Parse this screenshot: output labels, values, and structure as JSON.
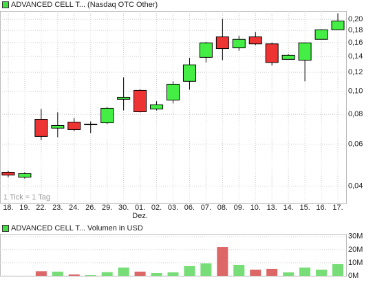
{
  "chart_data": [
    {
      "type": "candlestick",
      "title": "ADVANCED CELL T... (Nasdaq OTC Other)",
      "legend_color": "#44dd44",
      "annotation": "1 Tick = 1 Tag",
      "categories": [
        "18.",
        "19.",
        "22.",
        "23.",
        "24.",
        "26.",
        "29.",
        "30.",
        "01.",
        "02.",
        "03.",
        "06.",
        "07.",
        "08.",
        "09.",
        "10.",
        "13.",
        "14.",
        "15.",
        "16.",
        "17."
      ],
      "month_marks": [
        {
          "category": 8,
          "label": "Dez."
        }
      ],
      "open": [
        0.0457,
        0.0436,
        0.0762,
        0.07,
        0.0742,
        0.0728,
        0.0737,
        0.0925,
        0.1008,
        0.0842,
        0.0918,
        0.11,
        0.1387,
        0.169,
        0.152,
        0.169,
        0.158,
        0.136,
        0.135,
        0.165,
        0.181
      ],
      "high": [
        0.0463,
        0.0457,
        0.0842,
        0.0815,
        0.0772,
        0.0747,
        0.0858,
        0.1143,
        0.102,
        0.0908,
        0.11,
        0.138,
        0.161,
        0.201,
        0.171,
        0.177,
        0.16,
        0.143,
        0.16,
        0.182,
        0.212
      ],
      "low": [
        0.0436,
        0.043,
        0.0624,
        0.0641,
        0.068,
        0.0667,
        0.0728,
        0.0831,
        0.0815,
        0.0831,
        0.0888,
        0.1015,
        0.132,
        0.135,
        0.148,
        0.156,
        0.128,
        0.136,
        0.11,
        0.165,
        0.181
      ],
      "close": [
        0.0445,
        0.0451,
        0.0646,
        0.0718,
        0.069,
        0.0728,
        0.0848,
        0.0943,
        0.082,
        0.0877,
        0.107,
        0.129,
        0.1595,
        0.151,
        0.165,
        0.158,
        0.132,
        0.1415,
        0.1595,
        0.181,
        0.197
      ],
      "up_color": "#44ee44",
      "down_color": "#ee3333",
      "log_scale": true,
      "grid": true,
      "ylim": [
        0.034,
        0.217
      ],
      "yticks": [
        {
          "value": 0.04,
          "label": "0,04"
        },
        {
          "value": 0.06,
          "label": "0,06"
        },
        {
          "value": 0.08,
          "label": "0,08"
        },
        {
          "value": 0.1,
          "label": "0,10"
        },
        {
          "value": 0.12,
          "label": "0,12"
        },
        {
          "value": 0.14,
          "label": "0,14"
        },
        {
          "value": 0.16,
          "label": "0,16"
        },
        {
          "value": 0.18,
          "label": "0,18"
        },
        {
          "value": 0.2,
          "label": "0,20"
        }
      ]
    },
    {
      "type": "bar",
      "title": "ADVANCED CELL T... Volumen in USD",
      "legend_color": "#44dd44",
      "values": [
        0,
        0,
        3500000,
        3200000,
        1000000,
        500000,
        2800000,
        6300000,
        3200000,
        2100000,
        2600000,
        7400000,
        9500000,
        22000000,
        8400000,
        4700000,
        5300000,
        2600000,
        6300000,
        4700000,
        8900000
      ],
      "up_color": "#77dd77",
      "down_color": "#dd6666",
      "grid": true,
      "ylim": [
        0,
        32000000
      ],
      "yticks": [
        {
          "value": 0,
          "label": "0M"
        },
        {
          "value": 10000000,
          "label": "10M"
        },
        {
          "value": 20000000,
          "label": "20M"
        },
        {
          "value": 30000000,
          "label": "30M"
        }
      ]
    }
  ]
}
